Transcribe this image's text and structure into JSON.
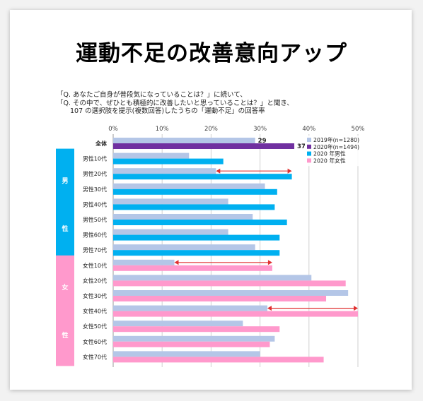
{
  "headline": "運動不足の改善意向アップ",
  "question_lines": [
    "「Q. あなたご自身が普段気になっていることは？」に続いて、",
    "「Q. その中で、ぜひとも積極的に改善したいと思っていることは？」と聞き、",
    "　　107 の選択肢を提示(複数回答)したうちの「運動不足」の回答率"
  ],
  "colors": {
    "y2019": "#b4c6e7",
    "y2020": "#7030a0",
    "male2020": "#00b0f0",
    "female2020": "#ff99cc",
    "male_band": "#00b0f0",
    "female_band": "#ff99cc",
    "arrow": "#e03030"
  },
  "chart_data": {
    "type": "bar",
    "orientation": "horizontal",
    "xlim": [
      0,
      50
    ],
    "xticks": [
      "0%",
      "10%",
      "20%",
      "30%",
      "40%",
      "50%"
    ],
    "grid": true,
    "legend_position": "top-right",
    "legend": [
      {
        "label": "2019年(n=1280)",
        "color_key": "y2019"
      },
      {
        "label": "2020年(n=1494)",
        "color_key": "y2020"
      },
      {
        "label": "2020 年男性",
        "color_key": "male2020"
      },
      {
        "label": "2020 年女性",
        "color_key": "female2020"
      }
    ],
    "groups": [
      {
        "label": "男",
        "label2": "性",
        "color_key": "male_band",
        "from": 1,
        "to": 7
      },
      {
        "label": "女",
        "label2": "性",
        "color_key": "female_band",
        "from": 8,
        "to": 14
      }
    ],
    "categories": [
      "全体",
      "男性10代",
      "男性20代",
      "男性30代",
      "男性40代",
      "男性50代",
      "男性60代",
      "男性70代",
      "女性10代",
      "女性20代",
      "女性30代",
      "女性40代",
      "女性50代",
      "女性60代",
      "女性70代"
    ],
    "series": [
      {
        "name": "2019年(n=1280)",
        "values": [
          29,
          15.5,
          21,
          31,
          23.5,
          28.5,
          23.5,
          29,
          12.5,
          40.5,
          48,
          31.5,
          26.5,
          33,
          30
        ]
      },
      {
        "name": "2020年",
        "values": [
          37,
          22.5,
          36.5,
          33.5,
          33,
          35.5,
          34,
          34,
          32.5,
          47.5,
          43.5,
          50,
          34,
          32,
          43
        ]
      }
    ],
    "data_labels": [
      {
        "category": "全体",
        "series2019": "29",
        "series2020": "37"
      }
    ],
    "arrows": [
      {
        "category": "男性20代",
        "from": 21,
        "to": 36.5
      },
      {
        "category": "女性10代",
        "from": 12.5,
        "to": 32.5
      },
      {
        "category": "女性40代",
        "from": 31.5,
        "to": 50
      }
    ]
  }
}
